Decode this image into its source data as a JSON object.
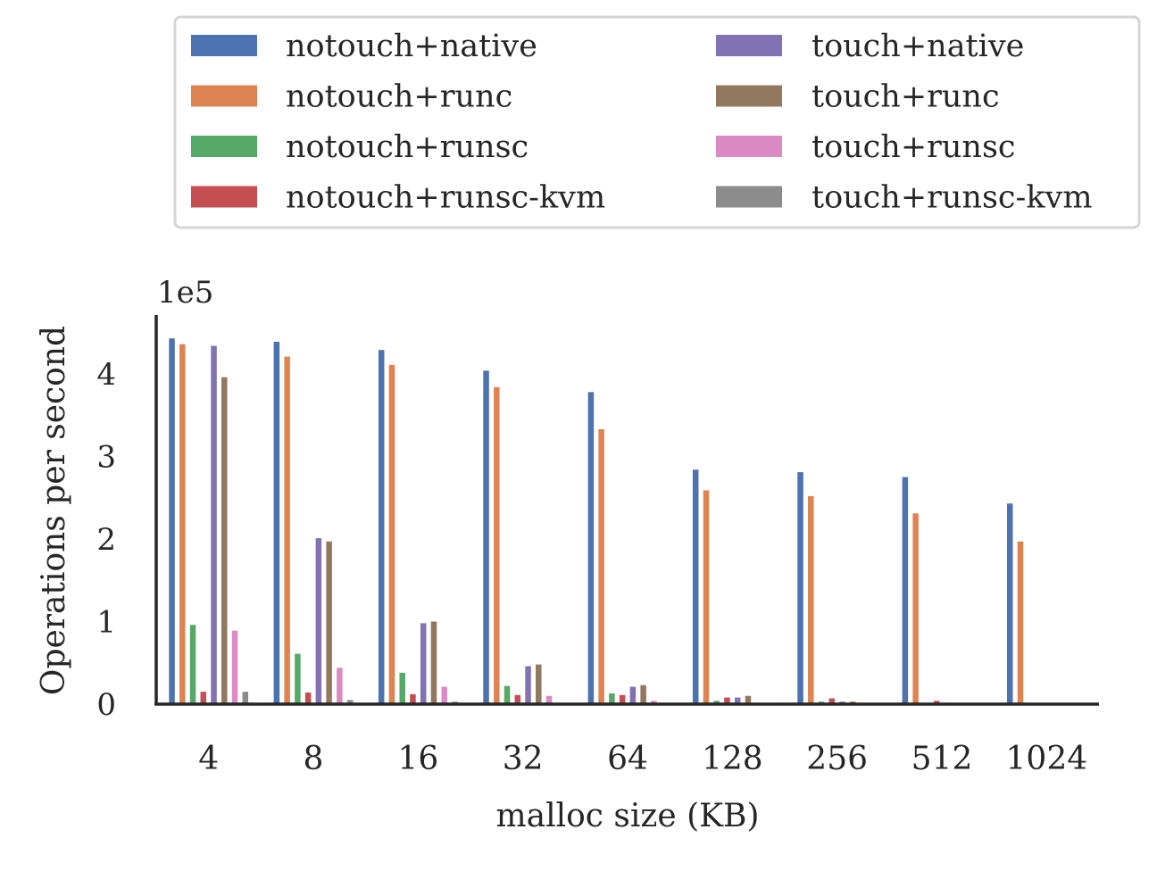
{
  "chart_data": {
    "type": "bar",
    "title": "",
    "xlabel": "malloc size (KB)",
    "ylabel": "Operations per second",
    "y_offset_label": "1e5",
    "y_scale": 100000,
    "ylim": [
      0,
      470000
    ],
    "yticks": [
      0,
      1,
      2,
      3,
      4
    ],
    "grid": false,
    "legend_position": "top",
    "categories": [
      "4",
      "8",
      "16",
      "32",
      "64",
      "128",
      "256",
      "512",
      "1024"
    ],
    "series": [
      {
        "name": "notouch+native",
        "color": "#4c72b0",
        "values": [
          443000,
          439000,
          429000,
          404000,
          378000,
          284000,
          281000,
          275000,
          243000
        ]
      },
      {
        "name": "notouch+runc",
        "color": "#dd8452",
        "values": [
          436000,
          421000,
          411000,
          384000,
          333000,
          259000,
          252000,
          231000,
          197000
        ]
      },
      {
        "name": "notouch+runsc",
        "color": "#55a868",
        "values": [
          96000,
          61000,
          38000,
          22000,
          13000,
          4000,
          3000,
          0,
          0
        ]
      },
      {
        "name": "notouch+runsc-kvm",
        "color": "#c44e52",
        "values": [
          15000,
          14000,
          12000,
          11000,
          11000,
          8000,
          7000,
          4000,
          0
        ]
      },
      {
        "name": "touch+native",
        "color": "#8172b3",
        "values": [
          434000,
          201000,
          98000,
          46000,
          21000,
          8000,
          3000,
          0,
          0
        ]
      },
      {
        "name": "touch+runc",
        "color": "#937860",
        "values": [
          396000,
          197000,
          100000,
          48000,
          23000,
          10000,
          3000,
          0,
          0
        ]
      },
      {
        "name": "touch+runsc",
        "color": "#da8bc3",
        "values": [
          89000,
          44000,
          21000,
          10000,
          4000,
          0,
          0,
          0,
          0
        ]
      },
      {
        "name": "touch+runsc-kvm",
        "color": "#8c8c8c",
        "values": [
          15000,
          5000,
          3000,
          0,
          0,
          0,
          0,
          0,
          0
        ]
      }
    ]
  }
}
